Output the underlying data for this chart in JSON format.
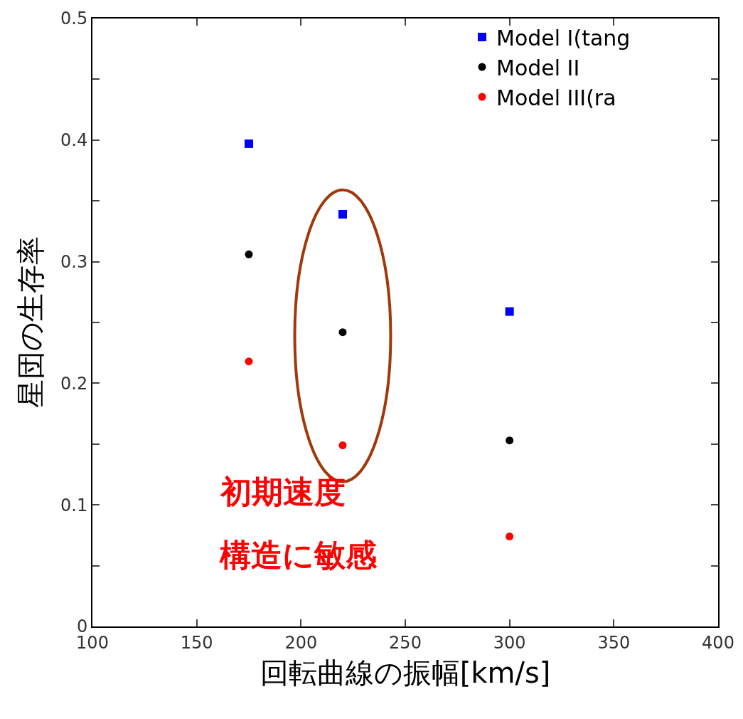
{
  "chart_data": {
    "type": "scatter",
    "x": [
      175,
      220,
      300
    ],
    "series": [
      {
        "name": "Model I(tang",
        "color": "#0000ff",
        "marker": "square",
        "values": [
          0.397,
          0.339,
          0.259
        ]
      },
      {
        "name": "Model II",
        "color": "#000000",
        "marker": "circle",
        "values": [
          0.306,
          0.242,
          0.153
        ]
      },
      {
        "name": "Model III(ra",
        "color": "#ff0000",
        "marker": "circle",
        "values": [
          0.218,
          0.149,
          0.074
        ]
      }
    ],
    "xlabel": "回転曲線の振幅[km/s]",
    "ylabel": "星団の生存率",
    "annotations": [
      "初期速度",
      "構造に敏感"
    ],
    "xlim": [
      100,
      400
    ],
    "xticks": [
      100,
      150,
      200,
      250,
      300,
      350,
      400
    ],
    "ylim": [
      0,
      0.5
    ],
    "yticks": [
      0,
      {
        "value": 0.05,
        "label": null
      },
      0.1,
      {
        "value": 0.15,
        "label": null
      },
      0.2,
      {
        "value": 0.25,
        "label": null
      },
      0.3,
      {
        "value": 0.35,
        "label": null
      },
      0.4,
      {
        "value": 0.45,
        "label": null
      },
      0.5
    ],
    "grid": false,
    "legend": "top right"
  }
}
